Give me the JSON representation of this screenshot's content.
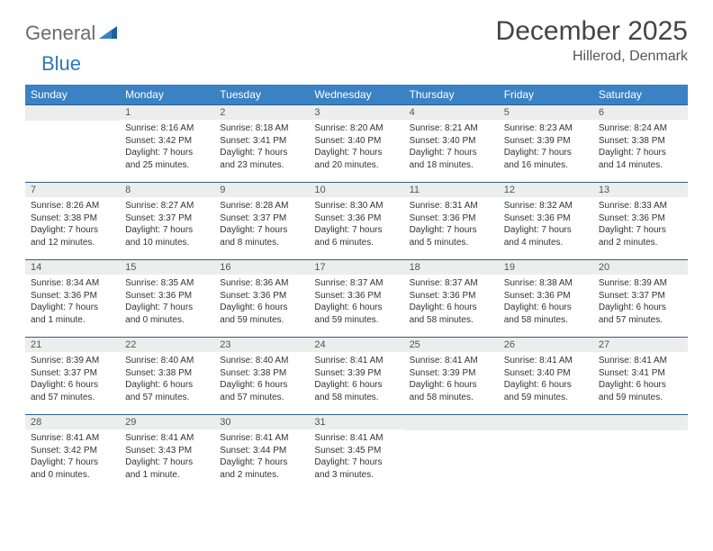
{
  "brand": {
    "part1": "General",
    "part2": "Blue"
  },
  "title": "December 2025",
  "location": "Hillerod, Denmark",
  "colors": {
    "header_bg": "#3a82c4",
    "header_text": "#ffffff",
    "day_separator": "#2f5f8f",
    "daynum_bg": "#eceded",
    "logo_gray": "#6b6b6b",
    "logo_blue": "#2f77b8",
    "text": "#333333",
    "background": "#ffffff"
  },
  "typography": {
    "title_fontsize": 30,
    "location_fontsize": 16,
    "header_fontsize": 12,
    "daynum_fontsize": 11,
    "body_fontsize": 10
  },
  "weekdays": [
    "Sunday",
    "Monday",
    "Tuesday",
    "Wednesday",
    "Thursday",
    "Friday",
    "Saturday"
  ],
  "weeks": [
    [
      {
        "num": "",
        "lines": []
      },
      {
        "num": "1",
        "lines": [
          "Sunrise: 8:16 AM",
          "Sunset: 3:42 PM",
          "Daylight: 7 hours",
          "and 25 minutes."
        ]
      },
      {
        "num": "2",
        "lines": [
          "Sunrise: 8:18 AM",
          "Sunset: 3:41 PM",
          "Daylight: 7 hours",
          "and 23 minutes."
        ]
      },
      {
        "num": "3",
        "lines": [
          "Sunrise: 8:20 AM",
          "Sunset: 3:40 PM",
          "Daylight: 7 hours",
          "and 20 minutes."
        ]
      },
      {
        "num": "4",
        "lines": [
          "Sunrise: 8:21 AM",
          "Sunset: 3:40 PM",
          "Daylight: 7 hours",
          "and 18 minutes."
        ]
      },
      {
        "num": "5",
        "lines": [
          "Sunrise: 8:23 AM",
          "Sunset: 3:39 PM",
          "Daylight: 7 hours",
          "and 16 minutes."
        ]
      },
      {
        "num": "6",
        "lines": [
          "Sunrise: 8:24 AM",
          "Sunset: 3:38 PM",
          "Daylight: 7 hours",
          "and 14 minutes."
        ]
      }
    ],
    [
      {
        "num": "7",
        "lines": [
          "Sunrise: 8:26 AM",
          "Sunset: 3:38 PM",
          "Daylight: 7 hours",
          "and 12 minutes."
        ]
      },
      {
        "num": "8",
        "lines": [
          "Sunrise: 8:27 AM",
          "Sunset: 3:37 PM",
          "Daylight: 7 hours",
          "and 10 minutes."
        ]
      },
      {
        "num": "9",
        "lines": [
          "Sunrise: 8:28 AM",
          "Sunset: 3:37 PM",
          "Daylight: 7 hours",
          "and 8 minutes."
        ]
      },
      {
        "num": "10",
        "lines": [
          "Sunrise: 8:30 AM",
          "Sunset: 3:36 PM",
          "Daylight: 7 hours",
          "and 6 minutes."
        ]
      },
      {
        "num": "11",
        "lines": [
          "Sunrise: 8:31 AM",
          "Sunset: 3:36 PM",
          "Daylight: 7 hours",
          "and 5 minutes."
        ]
      },
      {
        "num": "12",
        "lines": [
          "Sunrise: 8:32 AM",
          "Sunset: 3:36 PM",
          "Daylight: 7 hours",
          "and 4 minutes."
        ]
      },
      {
        "num": "13",
        "lines": [
          "Sunrise: 8:33 AM",
          "Sunset: 3:36 PM",
          "Daylight: 7 hours",
          "and 2 minutes."
        ]
      }
    ],
    [
      {
        "num": "14",
        "lines": [
          "Sunrise: 8:34 AM",
          "Sunset: 3:36 PM",
          "Daylight: 7 hours",
          "and 1 minute."
        ]
      },
      {
        "num": "15",
        "lines": [
          "Sunrise: 8:35 AM",
          "Sunset: 3:36 PM",
          "Daylight: 7 hours",
          "and 0 minutes."
        ]
      },
      {
        "num": "16",
        "lines": [
          "Sunrise: 8:36 AM",
          "Sunset: 3:36 PM",
          "Daylight: 6 hours",
          "and 59 minutes."
        ]
      },
      {
        "num": "17",
        "lines": [
          "Sunrise: 8:37 AM",
          "Sunset: 3:36 PM",
          "Daylight: 6 hours",
          "and 59 minutes."
        ]
      },
      {
        "num": "18",
        "lines": [
          "Sunrise: 8:37 AM",
          "Sunset: 3:36 PM",
          "Daylight: 6 hours",
          "and 58 minutes."
        ]
      },
      {
        "num": "19",
        "lines": [
          "Sunrise: 8:38 AM",
          "Sunset: 3:36 PM",
          "Daylight: 6 hours",
          "and 58 minutes."
        ]
      },
      {
        "num": "20",
        "lines": [
          "Sunrise: 8:39 AM",
          "Sunset: 3:37 PM",
          "Daylight: 6 hours",
          "and 57 minutes."
        ]
      }
    ],
    [
      {
        "num": "21",
        "lines": [
          "Sunrise: 8:39 AM",
          "Sunset: 3:37 PM",
          "Daylight: 6 hours",
          "and 57 minutes."
        ]
      },
      {
        "num": "22",
        "lines": [
          "Sunrise: 8:40 AM",
          "Sunset: 3:38 PM",
          "Daylight: 6 hours",
          "and 57 minutes."
        ]
      },
      {
        "num": "23",
        "lines": [
          "Sunrise: 8:40 AM",
          "Sunset: 3:38 PM",
          "Daylight: 6 hours",
          "and 57 minutes."
        ]
      },
      {
        "num": "24",
        "lines": [
          "Sunrise: 8:41 AM",
          "Sunset: 3:39 PM",
          "Daylight: 6 hours",
          "and 58 minutes."
        ]
      },
      {
        "num": "25",
        "lines": [
          "Sunrise: 8:41 AM",
          "Sunset: 3:39 PM",
          "Daylight: 6 hours",
          "and 58 minutes."
        ]
      },
      {
        "num": "26",
        "lines": [
          "Sunrise: 8:41 AM",
          "Sunset: 3:40 PM",
          "Daylight: 6 hours",
          "and 59 minutes."
        ]
      },
      {
        "num": "27",
        "lines": [
          "Sunrise: 8:41 AM",
          "Sunset: 3:41 PM",
          "Daylight: 6 hours",
          "and 59 minutes."
        ]
      }
    ],
    [
      {
        "num": "28",
        "lines": [
          "Sunrise: 8:41 AM",
          "Sunset: 3:42 PM",
          "Daylight: 7 hours",
          "and 0 minutes."
        ]
      },
      {
        "num": "29",
        "lines": [
          "Sunrise: 8:41 AM",
          "Sunset: 3:43 PM",
          "Daylight: 7 hours",
          "and 1 minute."
        ]
      },
      {
        "num": "30",
        "lines": [
          "Sunrise: 8:41 AM",
          "Sunset: 3:44 PM",
          "Daylight: 7 hours",
          "and 2 minutes."
        ]
      },
      {
        "num": "31",
        "lines": [
          "Sunrise: 8:41 AM",
          "Sunset: 3:45 PM",
          "Daylight: 7 hours",
          "and 3 minutes."
        ]
      },
      {
        "num": "",
        "lines": []
      },
      {
        "num": "",
        "lines": []
      },
      {
        "num": "",
        "lines": []
      }
    ]
  ]
}
